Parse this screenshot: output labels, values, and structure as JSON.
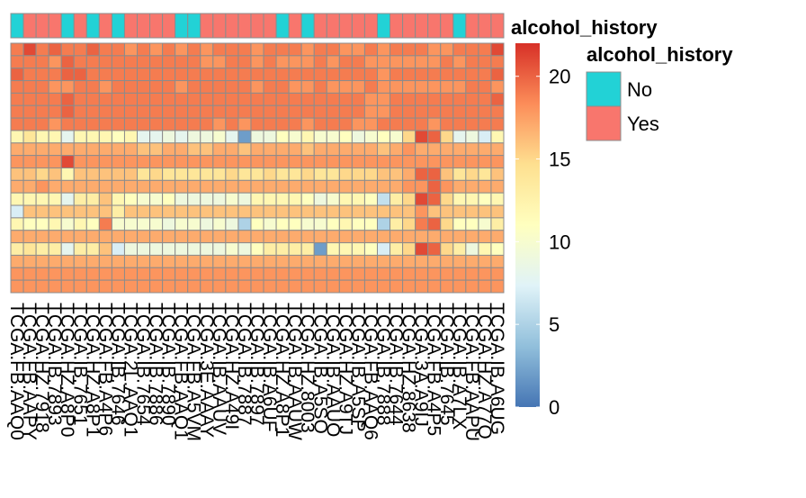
{
  "chart_data": {
    "type": "heatmap",
    "title": "",
    "annotation": {
      "name": "alcohol_history",
      "legend_title": "alcohol_history",
      "levels": [
        {
          "label": "No",
          "color": "#22D2D6"
        },
        {
          "label": "Yes",
          "color": "#F8766D"
        }
      ],
      "values": [
        "No",
        "Yes",
        "Yes",
        "Yes",
        "No",
        "Yes",
        "No",
        "Yes",
        "No",
        "Yes",
        "Yes",
        "Yes",
        "Yes",
        "No",
        "No",
        "Yes",
        "Yes",
        "Yes",
        "Yes",
        "Yes",
        "Yes",
        "No",
        "Yes",
        "No",
        "Yes",
        "Yes",
        "Yes",
        "Yes",
        "Yes",
        "No",
        "Yes",
        "Yes",
        "Yes",
        "Yes",
        "Yes",
        "No",
        "Yes",
        "Yes",
        "Yes"
      ]
    },
    "samples": [
      "TCGA.FB.AAQ0",
      "TCGA.FB.AAPY",
      "TCGA.HZ.7918",
      "TCGA.IB.7893",
      "TCGA.HZ.A8P0",
      "TCGA.IB.7651",
      "TCGA.HZ.A8P1",
      "TCGA.FB.A4P6",
      "TCGA.IB.7646",
      "TCGA.2L.AAQ1",
      "TCGA.IB.7654",
      "TCGA.IB.7886",
      "TCGA.IB.7890",
      "TCGA.FB.AAQ1",
      "TCGA.FB.A5VM",
      "TCGA.3E.AAAY",
      "TCGA.IB.AAUV",
      "TCGA.HZ.A49I",
      "TCGA.IB.7887",
      "TCGA.IB.7897",
      "TCGA.IB.A6UF",
      "TCGA.HZ.A8P1",
      "TCGA.IB.AAUW",
      "TCGA.HZ.8003",
      "TCGA.IB.A5SO",
      "TCGA.IB.AAUO",
      "TCGA.HZ.A9TJ",
      "TCGA.IB.A5SP",
      "TCGA.FB.AAQ6",
      "TCGA.IB.7888",
      "TCGA.IB.7644",
      "TCGA.HZ.8638",
      "TCGA.3A.A9IJ",
      "TCGA.FB.A4P5",
      "TCGA.IB.7645",
      "TCGA.IB.A7LX",
      "TCGA.FB.AAPU",
      "TCGA.HZ.A77Q",
      "TCGA.IB.A6UG"
    ],
    "n_rows": 20,
    "values": [
      [
        19,
        21,
        19,
        20,
        19,
        19,
        20,
        19,
        19,
        18,
        19,
        18,
        19,
        18,
        19,
        18,
        19,
        19,
        19,
        18,
        19,
        19,
        19,
        18,
        19,
        19,
        18,
        18,
        19,
        18,
        19,
        19,
        19,
        18,
        18,
        19,
        19,
        19,
        21
      ],
      [
        19,
        19,
        19,
        18,
        20,
        19,
        19,
        19,
        19,
        19,
        19,
        19,
        19,
        19,
        19,
        18,
        18,
        19,
        19,
        18,
        19,
        18,
        18,
        18,
        19,
        18,
        19,
        19,
        18,
        18,
        18,
        18,
        18,
        18,
        19,
        18,
        19,
        19,
        19
      ],
      [
        20,
        19,
        19,
        19,
        20,
        20,
        19,
        19,
        19,
        19,
        19,
        19,
        19,
        19,
        19,
        19,
        19,
        19,
        19,
        19,
        19,
        19,
        19,
        19,
        19,
        19,
        19,
        19,
        19,
        18,
        19,
        19,
        19,
        19,
        19,
        19,
        19,
        19,
        20
      ],
      [
        19,
        19,
        19,
        18,
        18,
        19,
        19,
        18,
        19,
        19,
        19,
        19,
        19,
        18,
        19,
        19,
        19,
        19,
        19,
        18,
        19,
        19,
        18,
        18,
        19,
        18,
        18,
        18,
        19,
        18,
        18,
        18,
        18,
        18,
        18,
        18,
        19,
        19,
        18
      ],
      [
        19,
        19,
        19,
        19,
        20,
        19,
        19,
        19,
        19,
        19,
        19,
        19,
        19,
        19,
        19,
        19,
        19,
        19,
        19,
        19,
        19,
        19,
        19,
        19,
        19,
        19,
        19,
        19,
        18,
        18,
        19,
        19,
        19,
        19,
        19,
        19,
        19,
        19,
        20
      ],
      [
        19,
        19,
        19,
        19,
        20,
        19,
        19,
        19,
        19,
        19,
        19,
        19,
        19,
        19,
        19,
        19,
        19,
        19,
        19,
        19,
        19,
        19,
        19,
        19,
        19,
        19,
        19,
        19,
        18,
        18,
        19,
        19,
        19,
        19,
        19,
        19,
        19,
        19,
        19
      ],
      [
        19,
        19,
        19,
        18,
        19,
        19,
        19,
        19,
        19,
        19,
        19,
        19,
        19,
        19,
        19,
        19,
        18,
        19,
        18,
        19,
        19,
        19,
        19,
        18,
        19,
        19,
        19,
        18,
        18,
        19,
        19,
        19,
        19,
        18,
        19,
        19,
        19,
        19,
        19
      ],
      [
        12,
        14,
        12,
        12,
        8,
        12,
        12,
        12,
        11,
        12,
        8,
        8,
        9,
        8,
        9,
        9,
        10,
        8,
        2,
        9,
        9,
        11,
        10,
        12,
        10,
        10,
        11,
        9,
        10,
        11,
        10,
        15,
        21,
        20,
        15,
        8,
        9,
        7,
        12
      ],
      [
        17,
        17,
        17,
        17,
        17,
        17,
        17,
        17,
        17,
        17,
        16,
        16,
        17,
        17,
        16,
        16,
        17,
        17,
        16,
        17,
        17,
        17,
        17,
        16,
        17,
        17,
        17,
        17,
        17,
        16,
        17,
        18,
        17,
        17,
        17,
        17,
        17,
        17,
        17
      ],
      [
        18,
        18,
        18,
        18,
        21,
        18,
        18,
        18,
        18,
        18,
        18,
        18,
        18,
        18,
        18,
        18,
        18,
        18,
        18,
        18,
        18,
        18,
        18,
        18,
        18,
        18,
        18,
        18,
        18,
        18,
        18,
        18,
        18,
        18,
        18,
        18,
        18,
        18,
        18
      ],
      [
        16,
        16,
        15,
        16,
        12,
        16,
        16,
        16,
        16,
        16,
        14,
        15,
        14,
        14,
        14,
        14,
        14,
        15,
        14,
        14,
        15,
        14,
        14,
        15,
        14,
        14,
        15,
        15,
        15,
        16,
        16,
        17,
        20,
        20,
        16,
        14,
        15,
        14,
        16
      ],
      [
        17,
        17,
        18,
        17,
        17,
        17,
        17,
        17,
        17,
        17,
        17,
        17,
        17,
        17,
        17,
        17,
        17,
        17,
        17,
        17,
        17,
        17,
        17,
        17,
        17,
        17,
        17,
        17,
        17,
        17,
        17,
        18,
        18,
        20,
        18,
        17,
        17,
        17,
        17
      ],
      [
        12,
        12,
        12,
        12,
        8,
        13,
        13,
        16,
        12,
        11,
        10,
        10,
        11,
        9,
        9,
        9,
        9,
        10,
        9,
        12,
        12,
        12,
        12,
        11,
        9,
        10,
        12,
        12,
        11,
        6,
        13,
        15,
        21,
        20,
        15,
        12,
        12,
        11,
        12
      ],
      [
        7,
        16,
        16,
        16,
        16,
        16,
        16,
        16,
        13,
        16,
        16,
        16,
        16,
        16,
        16,
        16,
        16,
        16,
        16,
        16,
        16,
        16,
        16,
        16,
        16,
        16,
        16,
        16,
        16,
        16,
        16,
        16,
        18,
        16,
        16,
        16,
        16,
        16,
        16
      ],
      [
        12,
        11,
        11,
        12,
        10,
        12,
        11,
        19,
        10,
        10,
        10,
        10,
        9,
        10,
        10,
        9,
        10,
        9,
        5,
        11,
        10,
        11,
        11,
        10,
        10,
        11,
        12,
        11,
        11,
        5,
        13,
        15,
        19,
        20,
        15,
        11,
        11,
        10,
        13
      ],
      [
        17,
        17,
        17,
        17,
        17,
        17,
        17,
        17,
        17,
        17,
        17,
        17,
        17,
        17,
        17,
        17,
        17,
        17,
        17,
        17,
        17,
        17,
        17,
        17,
        17,
        17,
        17,
        17,
        17,
        17,
        17,
        17,
        17,
        17,
        17,
        17,
        17,
        17,
        17
      ],
      [
        13,
        14,
        13,
        13,
        8,
        13,
        13,
        16,
        7,
        9,
        9,
        9,
        9,
        9,
        9,
        9,
        9,
        10,
        9,
        11,
        13,
        13,
        13,
        13,
        2,
        12,
        12,
        12,
        11,
        7,
        13,
        15,
        21,
        20,
        15,
        13,
        9,
        12,
        11
      ],
      [
        17,
        17,
        17,
        17,
        17,
        17,
        17,
        17,
        17,
        17,
        17,
        17,
        17,
        17,
        17,
        17,
        17,
        17,
        17,
        17,
        17,
        17,
        17,
        17,
        17,
        17,
        17,
        17,
        17,
        17,
        17,
        17,
        17,
        17,
        17,
        17,
        17,
        17,
        17
      ],
      [
        18,
        18,
        18,
        18,
        18,
        18,
        18,
        18,
        18,
        18,
        18,
        18,
        18,
        18,
        18,
        18,
        18,
        18,
        18,
        18,
        18,
        18,
        18,
        18,
        18,
        18,
        18,
        18,
        18,
        18,
        18,
        18,
        18,
        18,
        18,
        18,
        18,
        18,
        18
      ],
      [
        18,
        18,
        18,
        18,
        18,
        18,
        18,
        18,
        18,
        18,
        18,
        18,
        18,
        18,
        18,
        18,
        18,
        18,
        18,
        18,
        18,
        18,
        18,
        18,
        18,
        18,
        18,
        18,
        18,
        18,
        18,
        18,
        18,
        18,
        18,
        18,
        18,
        18,
        18
      ]
    ],
    "color_scale": {
      "range": [
        0,
        22
      ],
      "ticks": [
        0,
        5,
        10,
        15,
        20
      ],
      "colors": [
        "#4575B4",
        "#91BFDB",
        "#E0F3F8",
        "#FFFFBF",
        "#FEE090",
        "#FC8D59",
        "#D73027"
      ]
    },
    "legend_placement": "right"
  }
}
